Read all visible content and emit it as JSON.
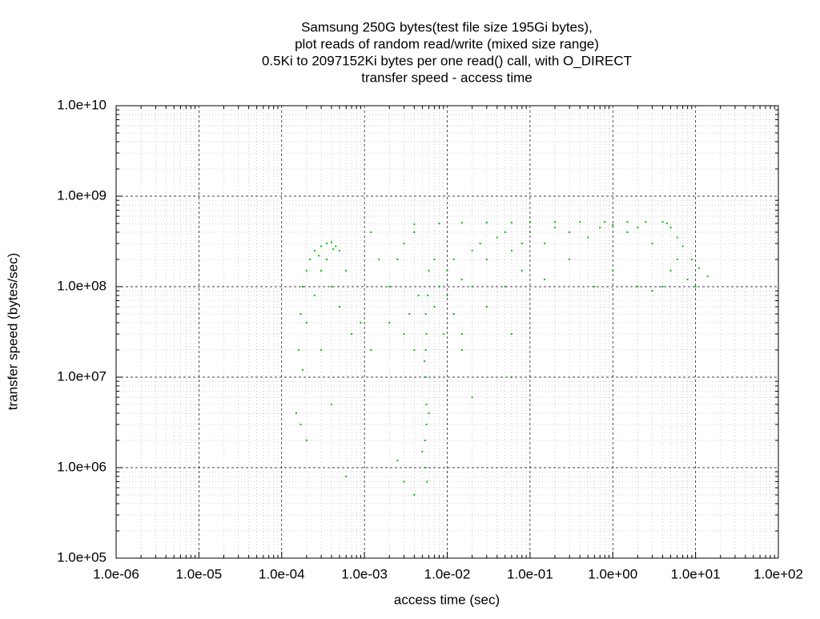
{
  "chart_data": {
    "type": "scatter",
    "title": [
      "Samsung 250G bytes(test file size 195Gi bytes),",
      "plot reads of random read/write (mixed size range)",
      "0.5Ki to 2097152Ki bytes per one read() call, with O_DIRECT",
      "transfer speed - access time"
    ],
    "x_label": "access time (sec)",
    "y_label": "transfer speed (bytes/sec)",
    "x_log": true,
    "y_log": true,
    "grid": true,
    "minor_grid": true,
    "color": "#00c000",
    "xlim": [
      1e-06,
      100
    ],
    "ylim": [
      100000,
      10000000000
    ],
    "xticks": [
      {
        "value": 1e-06,
        "label": "1.0e-06"
      },
      {
        "value": 1e-05,
        "label": "1.0e-05"
      },
      {
        "value": 0.0001,
        "label": "1.0e-04"
      },
      {
        "value": 0.001,
        "label": "1.0e-03"
      },
      {
        "value": 0.01,
        "label": "1.0e-02"
      },
      {
        "value": 0.1,
        "label": "1.0e-01"
      },
      {
        "value": 1,
        "label": "1.0e+00"
      },
      {
        "value": 10,
        "label": "1.0e+01"
      },
      {
        "value": 100,
        "label": "1.0e+02"
      }
    ],
    "yticks": [
      {
        "value": 100000,
        "label": "1.0e+05"
      },
      {
        "value": 1000000,
        "label": "1.0e+06"
      },
      {
        "value": 10000000,
        "label": "1.0e+07"
      },
      {
        "value": 100000000,
        "label": "1.0e+08"
      },
      {
        "value": 1000000000,
        "label": "1.0e+09"
      },
      {
        "value": 10000000000,
        "label": "1.0e+10"
      }
    ],
    "x": [
      0.00015,
      0.00016,
      0.00017,
      0.00018,
      0.0002,
      0.00022,
      0.00025,
      0.0003,
      0.00035,
      0.0004,
      0.00045,
      0.0005,
      0.0003,
      0.00025,
      0.0002,
      0.00018,
      0.0002,
      0.0003,
      0.0004,
      0.0005,
      0.0006,
      0.0007,
      0.0004,
      0.00017,
      0.00035,
      0.00028,
      0.00042,
      0.0006,
      0.0009,
      0.0012,
      0.0055,
      0.0056,
      0.0054,
      0.0055,
      0.0057,
      0.0055,
      0.0056,
      0.0055,
      0.0058,
      0.0053,
      0.0056,
      0.004,
      0.003,
      0.0025,
      0.005,
      0.006,
      0.003,
      0.0035,
      0.004,
      0.0045,
      0.007,
      0.008,
      0.01,
      0.012,
      0.015,
      0.02,
      0.025,
      0.03,
      0.04,
      0.05,
      0.06,
      0.08,
      0.1,
      0.15,
      0.2,
      0.3,
      0.5,
      0.7,
      1,
      1.5,
      2,
      3,
      0.002,
      0.0025,
      0.003,
      0.004,
      0.006,
      0.009,
      0.012,
      0.015,
      0.002,
      0.0015,
      0.0012,
      0.01,
      0.007,
      0.02,
      0.03,
      0.05,
      0.08,
      0.15,
      0.3,
      0.6,
      1,
      2,
      0.06,
      0.06,
      0.02,
      0.015,
      0.004,
      0.008,
      0.015,
      0.03,
      0.06,
      0.1,
      0.2,
      0.4,
      0.8,
      1.5,
      2.5,
      4,
      4.5,
      5,
      6,
      7,
      9,
      11,
      14,
      6,
      8,
      5,
      4,
      10,
      3
    ],
    "values": [
      4000000,
      20000000,
      50000000,
      100000000,
      150000000,
      200000000,
      250000000,
      280000000,
      300000000,
      310000000,
      280000000,
      250000000,
      150000000,
      80000000,
      40000000,
      12000000,
      2000000,
      20000000,
      100000000,
      60000000,
      150000000,
      30000000,
      5000000,
      3000000,
      200000000,
      220000000,
      260000000,
      800000,
      40000000,
      20000000,
      10000000,
      5000000,
      2000000,
      1000000,
      700000,
      20000000,
      30000000,
      50000000,
      80000000,
      15000000,
      3000000,
      500000,
      700000,
      1200000,
      1500000,
      4000000,
      30000000,
      50000000,
      20000000,
      80000000,
      60000000,
      100000000,
      150000000,
      200000000,
      120000000,
      250000000,
      300000000,
      200000000,
      350000000,
      400000000,
      250000000,
      300000000,
      400000000,
      300000000,
      450000000,
      400000000,
      350000000,
      450000000,
      480000000,
      400000000,
      450000000,
      300000000,
      100000000,
      200000000,
      300000000,
      400000000,
      150000000,
      30000000,
      50000000,
      20000000,
      40000000,
      200000000,
      400000000,
      80000000,
      200000000,
      100000000,
      60000000,
      100000000,
      150000000,
      120000000,
      200000000,
      100000000,
      150000000,
      100000000,
      30000000,
      10000000,
      6000000,
      30000000,
      490000000,
      500000000,
      510000000,
      510000000,
      510000000,
      520000000,
      520000000,
      520000000,
      520000000,
      520000000,
      520000000,
      520000000,
      500000000,
      450000000,
      350000000,
      280000000,
      200000000,
      160000000,
      130000000,
      200000000,
      120000000,
      150000000,
      100000000,
      100000000,
      90000000
    ]
  }
}
